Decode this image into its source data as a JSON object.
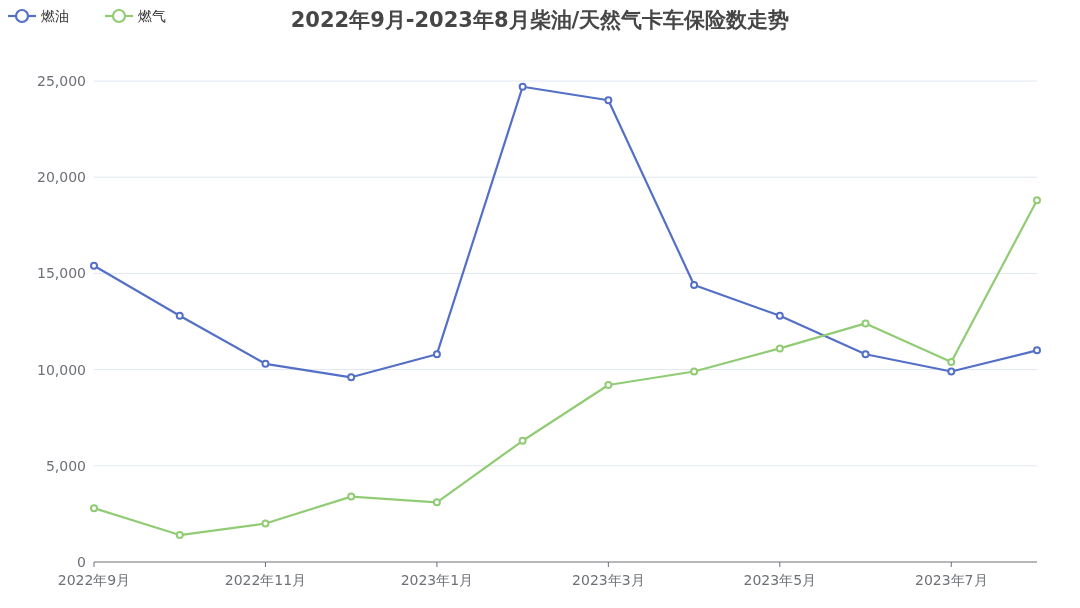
{
  "chart_data": {
    "type": "line",
    "title": "2022年9月-2023年8月柴油/天然气卡车保险数走势",
    "categories": [
      "2022年9月",
      null,
      "2022年11月",
      null,
      "2023年1月",
      null,
      "2023年3月",
      null,
      "2023年5月",
      null,
      "2023年7月",
      null
    ],
    "series": [
      {
        "name": "燃油",
        "color": "#5470c6",
        "values": [
          15400,
          12800,
          10300,
          9600,
          10800,
          24700,
          24000,
          14400,
          12800,
          10800,
          9900,
          11000
        ]
      },
      {
        "name": "燃气",
        "color": "#91cc75",
        "values": [
          2800,
          1400,
          2000,
          3400,
          3100,
          6300,
          9200,
          9900,
          11100,
          12400,
          10400,
          18800
        ]
      }
    ],
    "ylim": [
      0,
      25000
    ],
    "yticks": [
      0,
      {
        "value": 5000,
        "label": "5,000"
      },
      {
        "value": 10000,
        "label": "10,000"
      },
      {
        "value": 15000,
        "label": "15,000"
      },
      {
        "value": 20000,
        "label": "20,000"
      },
      {
        "value": 25000,
        "label": "25,000"
      }
    ],
    "grid": "y",
    "legend": "top left",
    "marker": "circle"
  }
}
